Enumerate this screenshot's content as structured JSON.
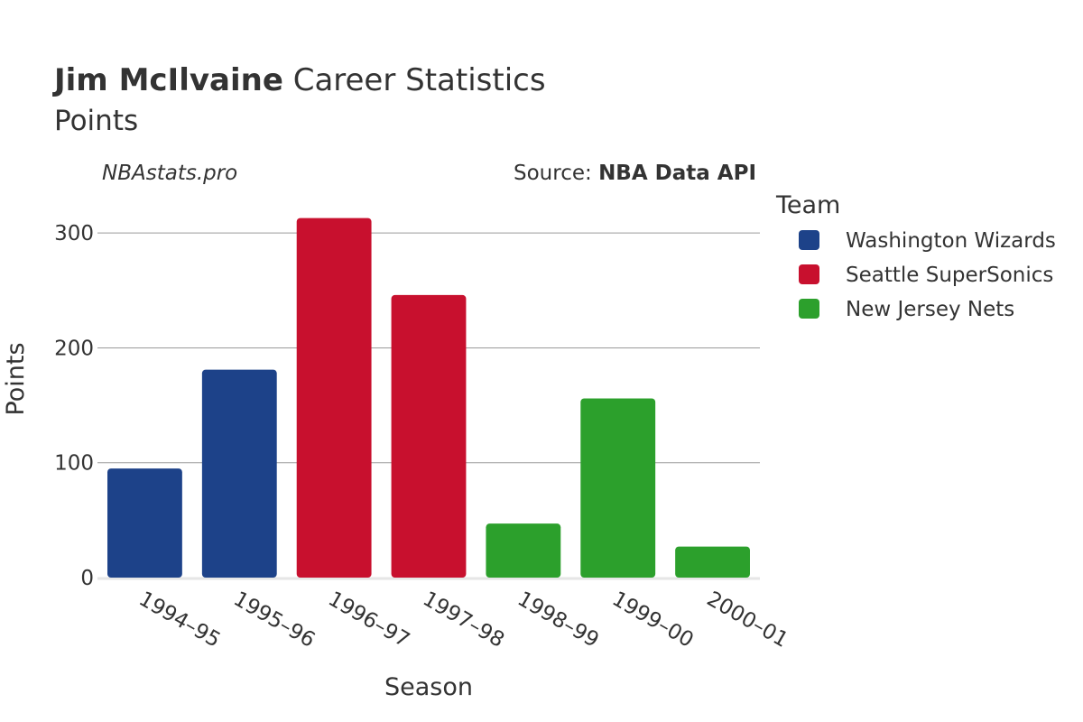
{
  "header": {
    "player_name": "Jim McIlvaine",
    "title_rest": "Career Statistics",
    "subtitle": "Points",
    "site": "NBAstats.pro",
    "source_prefix": "Source: ",
    "source_name": "NBA Data API"
  },
  "legend": {
    "title": "Team",
    "items": [
      {
        "label": "Washington Wizards",
        "color": "#1d4289"
      },
      {
        "label": "Seattle SuperSonics",
        "color": "#c8102e"
      },
      {
        "label": "New Jersey Nets",
        "color": "#2ca02c"
      }
    ]
  },
  "chart_data": {
    "type": "bar",
    "title": "Jim McIlvaine Career Statistics",
    "subtitle": "Points",
    "xlabel": "Season",
    "ylabel": "Points",
    "ylim": [
      0,
      330
    ],
    "yticks": [
      0,
      100,
      200,
      300
    ],
    "grid": true,
    "legend_position": "right",
    "categories": [
      "1994–95",
      "1995–96",
      "1996–97",
      "1997–98",
      "1998–99",
      "1999–00",
      "2000–01"
    ],
    "values": [
      95,
      181,
      313,
      246,
      47,
      156,
      27
    ],
    "teams": [
      "Washington Wizards",
      "Washington Wizards",
      "Seattle SuperSonics",
      "Seattle SuperSonics",
      "New Jersey Nets",
      "New Jersey Nets",
      "New Jersey Nets"
    ]
  }
}
